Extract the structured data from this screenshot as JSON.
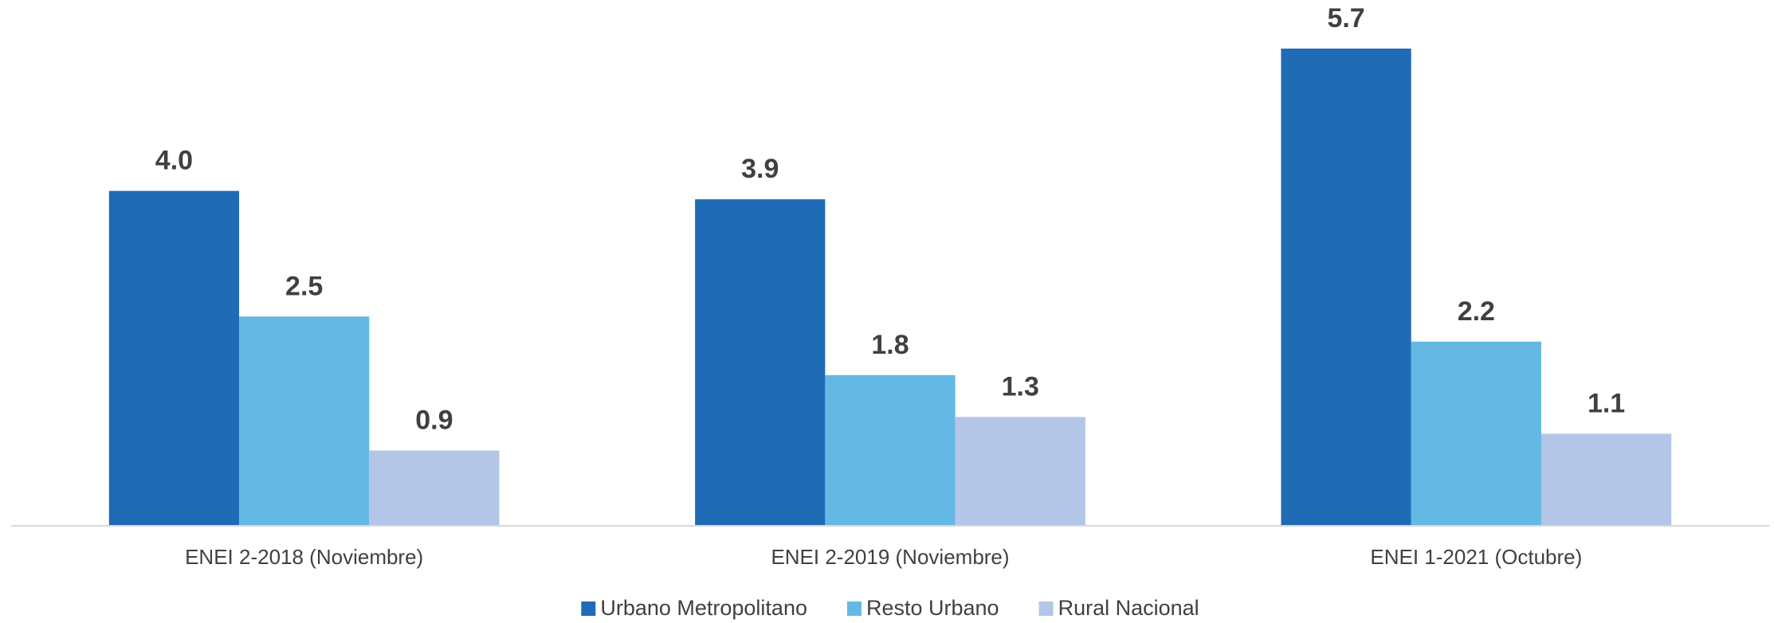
{
  "chart_data": {
    "type": "bar",
    "categories": [
      "ENEI 2-2018 (Noviembre)",
      "ENEI 2-2019 (Noviembre)",
      "ENEI 1-2021 (Octubre)"
    ],
    "series": [
      {
        "name": "Urbano Metropolitano",
        "color": "#1f6bb5",
        "values": [
          4.0,
          3.9,
          5.7
        ],
        "value_labels": [
          "4.0",
          "3.9",
          "5.7"
        ]
      },
      {
        "name": "Resto Urbano",
        "color": "#64b8e4",
        "values": [
          2.5,
          1.8,
          2.2
        ]
      },
      {
        "name": "Rural Nacional",
        "color": "#b4c6e7",
        "values": [
          0.9,
          1.3,
          1.1
        ]
      }
    ],
    "ylim": [
      0,
      5.7
    ],
    "legend": "bottom"
  }
}
